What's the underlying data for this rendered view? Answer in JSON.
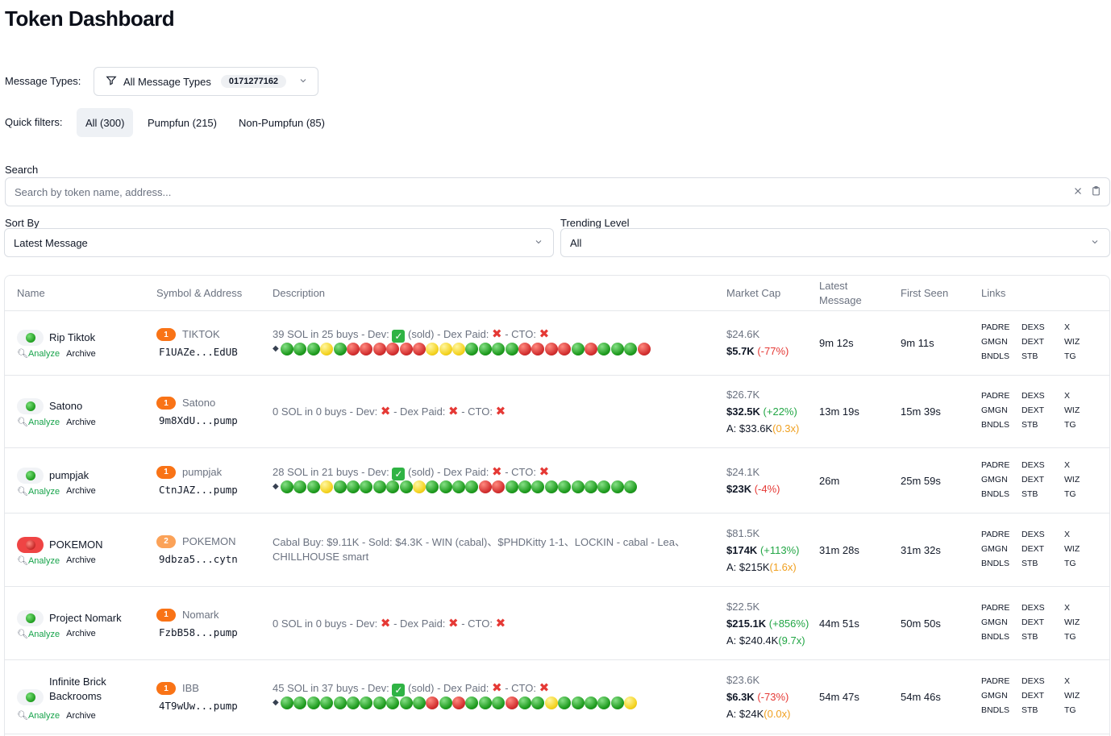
{
  "page": {
    "title": "Token Dashboard"
  },
  "message_types": {
    "label": "Message Types:",
    "value": "All Message Types",
    "badge": "0171277162"
  },
  "quick_filters": {
    "label": "Quick filters:",
    "items": [
      {
        "label": "All (300)"
      },
      {
        "label": "Pumpfun (215)"
      },
      {
        "label": "Non-Pumpfun (85)"
      }
    ]
  },
  "search": {
    "label": "Search",
    "placeholder": "Search by token name, address..."
  },
  "sort": {
    "label": "Sort By",
    "value": "Latest Message"
  },
  "trending": {
    "label": "Trending Level",
    "value": "All"
  },
  "table": {
    "headers": {
      "name": "Name",
      "symbol": "Symbol & Address",
      "description": "Description",
      "market_cap": "Market Cap",
      "latest_l1": "Latest",
      "latest_l2": "Message",
      "first_seen": "First Seen",
      "links": "Links"
    },
    "actions": {
      "analyze": "Analyze",
      "archive": "Archive"
    },
    "links": {
      "padre": "PADRE",
      "dexs": "DEXS",
      "x": "X",
      "gmgn": "GMGN",
      "dext": "DEXT",
      "wiz": "WIZ",
      "bndls": "BNDLS",
      "stb": "STB",
      "tg": "TG"
    },
    "rows": [
      {
        "name": "Rip Tiktok",
        "status": "green",
        "rank": "1",
        "symbol": "TIKTOK",
        "address": "F1UAZe...EdUB",
        "desc": {
          "a": "39 SOL in 25 buys - Dev: ",
          "b": " (sold) - Dex Paid: ",
          "c": " - CTO: "
        },
        "dev_check": true,
        "balls": "gggygrrrrrryyyggggrrrrgrggg r",
        "mc_initial": "$24.6K",
        "mc_current": "$5.7K",
        "mc_change": "(-77%)",
        "mc_change_dir": "neg",
        "ath": "",
        "ath_mult": "",
        "latest": "9m 12s",
        "first_seen": "9m 11s"
      },
      {
        "name": "Satono",
        "status": "green",
        "rank": "1",
        "symbol": "Satono",
        "address": "9m8XdU...pump",
        "desc": {
          "a": "0 SOL in 0 buys - Dev: ",
          "b": " - Dex Paid: ",
          "c": " - CTO: "
        },
        "dev_check": false,
        "balls": "",
        "mc_initial": "$26.7K",
        "mc_current": "$32.5K",
        "mc_change": "(+22%)",
        "mc_change_dir": "pos",
        "ath": "A: $33.6K",
        "ath_mult": "(0.3x)",
        "latest": "13m 19s",
        "first_seen": "15m 39s"
      },
      {
        "name": "pumpjak",
        "status": "green",
        "rank": "1",
        "symbol": "pumpjak",
        "address": "CtnJAZ...pump",
        "desc": {
          "a": "28 SOL in 21 buys - Dev: ",
          "b": " (sold) - Dex Paid: ",
          "c": " - CTO: "
        },
        "dev_check": true,
        "balls": "gggyggggggyggggrrgggggggggg",
        "mc_initial": "$24.1K",
        "mc_current": "$23K",
        "mc_change": "(-4%)",
        "mc_change_dir": "neg",
        "ath": "",
        "ath_mult": "",
        "latest": "26m",
        "first_seen": "25m 59s"
      },
      {
        "name": "POKEMON",
        "status": "red",
        "rank": "2",
        "symbol": "POKEMON",
        "address": "9dbza5...cytn",
        "desc": {
          "line1": "Cabal Buy: $9.11K - Sold: $4.3K - WIN (cabal)、$PHDKitty 1-1、LOCKIN - cabal - Lea、",
          "line2": "CHILLHOUSE smart"
        },
        "dev_check": false,
        "balls": "",
        "mc_initial": "$81.5K",
        "mc_current": "$174K",
        "mc_change": "(+113%)",
        "mc_change_dir": "pos",
        "ath": "A: $215K",
        "ath_mult": "(1.6x)",
        "latest": "31m 28s",
        "first_seen": "31m 32s"
      },
      {
        "name": "Project Nomark",
        "status": "green",
        "rank": "1",
        "symbol": "Nomark",
        "address": "FzbB58...pump",
        "desc": {
          "a": "0 SOL in 0 buys - Dev: ",
          "b": " - Dex Paid: ",
          "c": " - CTO: "
        },
        "dev_check": false,
        "balls": "",
        "mc_initial": "$22.5K",
        "mc_current": "$215.1K",
        "mc_change": "(+856%)",
        "mc_change_dir": "pos",
        "ath": "A: $240.4K",
        "ath_mult": "(9.7x)",
        "latest": "44m 51s",
        "first_seen": "50m 50s"
      },
      {
        "name_l1": "Infinite Brick",
        "name_l2": "Backrooms",
        "status": "green",
        "rank": "1",
        "symbol": "IBB",
        "address": "4T9wUw...pump",
        "desc": {
          "a": "45 SOL in 37 buys - Dev: ",
          "b": " (sold) - Dex Paid: ",
          "c": " - CTO: "
        },
        "dev_check": true,
        "balls": "gggggggggggrgrgggrggygggggy",
        "mc_initial": "$23.6K",
        "mc_current": "$6.3K",
        "mc_change": "(-73%)",
        "mc_change_dir": "neg",
        "ath": "A: $24K",
        "ath_mult": "(0.0x)",
        "latest": "54m 47s",
        "first_seen": "54m 46s"
      }
    ]
  },
  "icons": {
    "filter": "filter-icon",
    "chevron": "chevron-down-icon",
    "clear": "close-icon",
    "clipboard": "clipboard-icon",
    "magnifier": "magnifier-icon"
  },
  "colors": {
    "green": "#16a34a",
    "red": "#e53935",
    "orange": "#f97316",
    "amber": "#f0a020"
  }
}
